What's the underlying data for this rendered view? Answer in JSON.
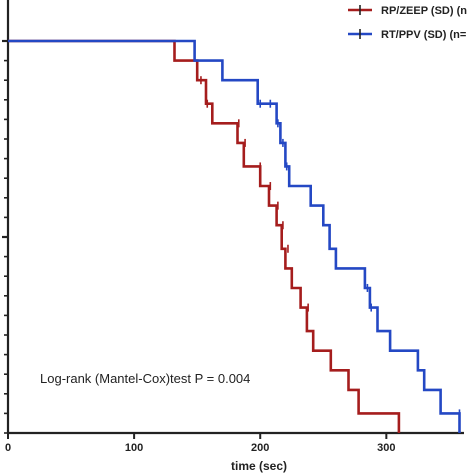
{
  "chart_data": {
    "type": "line",
    "subtype": "kaplan-meier step",
    "xlabel": "time (sec)",
    "xlim": [
      0,
      360
    ],
    "x_ticks": [
      0,
      100,
      200,
      300
    ],
    "ylim": [
      0,
      100
    ],
    "y_tick_count": 22,
    "legend_position": "top-right",
    "annotation": "Log-rank (Mantel-Cox)test P = 0.004",
    "series": [
      {
        "name": "RP/ZEEP (SD) (n",
        "color": "#a51d1d",
        "steps": [
          [
            0,
            100
          ],
          [
            132,
            100
          ],
          [
            132,
            95
          ],
          [
            150,
            95
          ],
          [
            150,
            90
          ],
          [
            157,
            90
          ],
          [
            157,
            84
          ],
          [
            162,
            84
          ],
          [
            162,
            79
          ],
          [
            182,
            79
          ],
          [
            182,
            74
          ],
          [
            187,
            74
          ],
          [
            187,
            68
          ],
          [
            200,
            68
          ],
          [
            200,
            63
          ],
          [
            207,
            63
          ],
          [
            207,
            58
          ],
          [
            213,
            58
          ],
          [
            213,
            53
          ],
          [
            217,
            53
          ],
          [
            217,
            47
          ],
          [
            220,
            47
          ],
          [
            220,
            42
          ],
          [
            225,
            42
          ],
          [
            225,
            37
          ],
          [
            232,
            37
          ],
          [
            232,
            32
          ],
          [
            237,
            32
          ],
          [
            237,
            26
          ],
          [
            242,
            26
          ],
          [
            242,
            21
          ],
          [
            256,
            21
          ],
          [
            256,
            16
          ],
          [
            270,
            16
          ],
          [
            270,
            11
          ],
          [
            278,
            11
          ],
          [
            278,
            5
          ],
          [
            310,
            5
          ],
          [
            310,
            0
          ]
        ],
        "censored": [
          [
            153,
            90
          ],
          [
            158,
            84
          ],
          [
            183,
            79
          ],
          [
            188,
            74
          ],
          [
            200,
            68
          ],
          [
            208,
            63
          ],
          [
            214,
            58
          ],
          [
            218,
            53
          ],
          [
            222,
            47
          ],
          [
            238,
            32
          ]
        ]
      },
      {
        "name": "RT/PPV (SD) (n=",
        "color": "#2448c4",
        "steps": [
          [
            0,
            100
          ],
          [
            148,
            100
          ],
          [
            148,
            95
          ],
          [
            170,
            95
          ],
          [
            170,
            90
          ],
          [
            198,
            90
          ],
          [
            198,
            84
          ],
          [
            213,
            84
          ],
          [
            213,
            79
          ],
          [
            216,
            79
          ],
          [
            216,
            74
          ],
          [
            220,
            74
          ],
          [
            220,
            68
          ],
          [
            223,
            68
          ],
          [
            223,
            63
          ],
          [
            240,
            63
          ],
          [
            240,
            58
          ],
          [
            250,
            58
          ],
          [
            250,
            53
          ],
          [
            255,
            53
          ],
          [
            255,
            47
          ],
          [
            260,
            47
          ],
          [
            260,
            42
          ],
          [
            283,
            42
          ],
          [
            283,
            37
          ],
          [
            287,
            37
          ],
          [
            287,
            32
          ],
          [
            293,
            32
          ],
          [
            293,
            26
          ],
          [
            303,
            26
          ],
          [
            303,
            21
          ],
          [
            325,
            21
          ],
          [
            325,
            16
          ],
          [
            330,
            16
          ],
          [
            330,
            11
          ],
          [
            343,
            11
          ],
          [
            343,
            5
          ],
          [
            358,
            5
          ],
          [
            358,
            0
          ]
        ],
        "censored": [
          [
            200,
            84
          ],
          [
            208,
            84
          ],
          [
            214,
            79
          ],
          [
            218,
            74
          ],
          [
            221,
            68
          ],
          [
            285,
            37
          ],
          [
            288,
            32
          ],
          [
            358,
            5
          ]
        ]
      }
    ]
  }
}
